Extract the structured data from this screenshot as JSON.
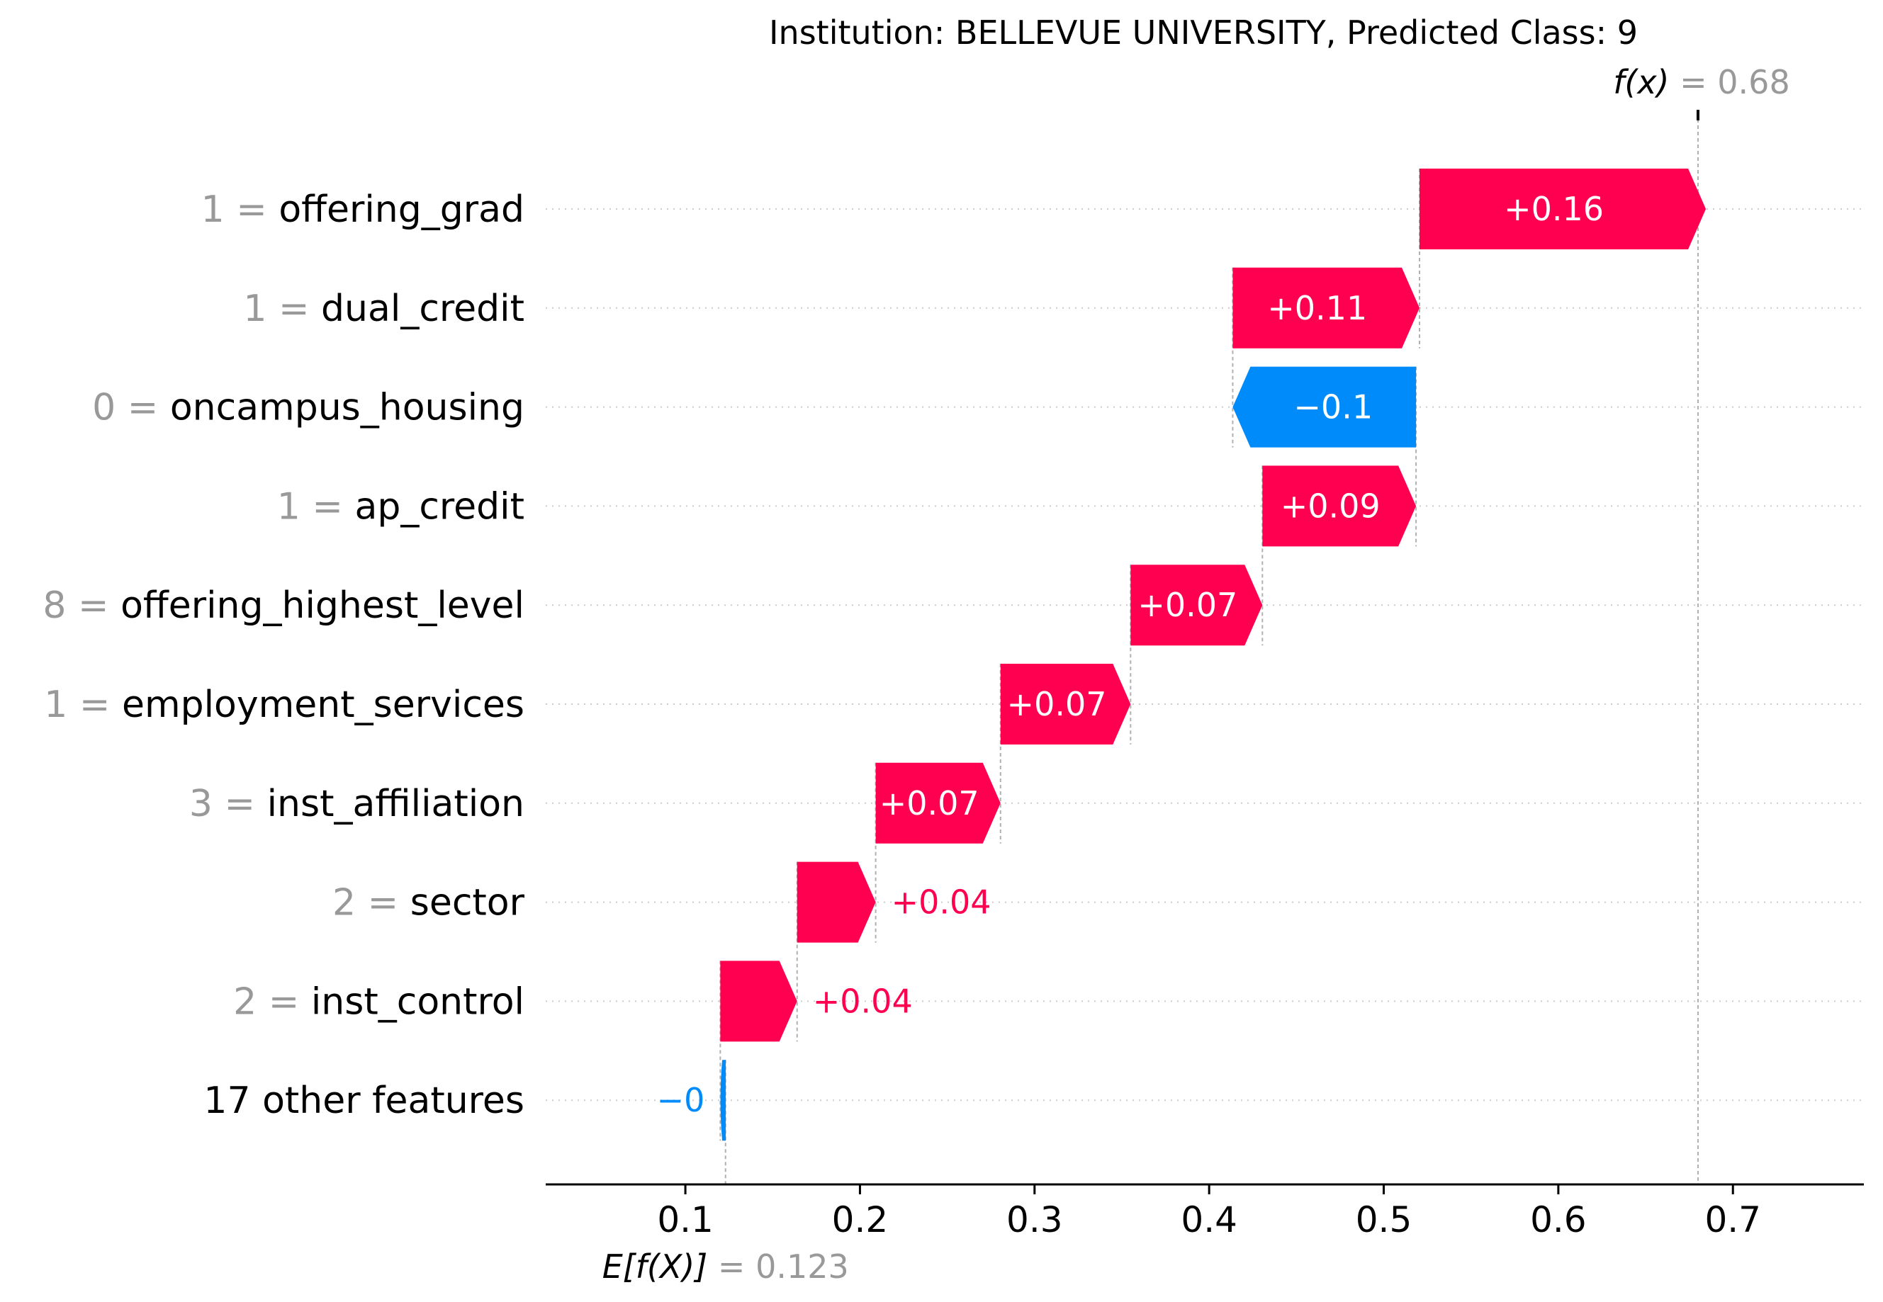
{
  "chart_data": {
    "type": "waterfall",
    "title": "Institution: BELLEVUE UNIVERSITY, Predicted Class: 9",
    "base_value": 0.123,
    "base_label": "E[f(X)]",
    "base_value_text": "= 0.123",
    "output_value": 0.68,
    "output_label": "f(x)",
    "output_value_text": "= 0.68",
    "xlim": [
      0.02,
      0.775
    ],
    "xticks": [
      0.1,
      0.2,
      0.3,
      0.4,
      0.5,
      0.6,
      0.7
    ],
    "xtick_labels": [
      "0.1",
      "0.2",
      "0.3",
      "0.4",
      "0.5",
      "0.6",
      "0.7"
    ],
    "colors": {
      "positive": "#ff0051",
      "negative": "#008bfb",
      "value_gray": "#999999",
      "text": "#000000"
    },
    "features": [
      {
        "value": "1",
        "name": "offering_grad",
        "contribution": 0.164,
        "label": "+0.16"
      },
      {
        "value": "1",
        "name": "dual_credit",
        "contribution": 0.107,
        "label": "+0.11"
      },
      {
        "value": "0",
        "name": "oncampus_housing",
        "contribution": -0.105,
        "label": "−0.1"
      },
      {
        "value": "1",
        "name": "ap_credit",
        "contribution": 0.088,
        "label": "+0.09"
      },
      {
        "value": "8",
        "name": "offering_highest_level",
        "contribution": 0.0755,
        "label": "+0.07"
      },
      {
        "value": "1",
        "name": "employment_services",
        "contribution": 0.0745,
        "label": "+0.07"
      },
      {
        "value": "3",
        "name": "inst_affiliation",
        "contribution": 0.0715,
        "label": "+0.07"
      },
      {
        "value": "2",
        "name": "sector",
        "contribution": 0.045,
        "label": "+0.04"
      },
      {
        "value": "2",
        "name": "inst_control",
        "contribution": 0.044,
        "label": "+0.04"
      },
      {
        "value": "17",
        "name": "other features",
        "contribution": -0.003,
        "label": "−0",
        "is_other": true
      }
    ]
  }
}
